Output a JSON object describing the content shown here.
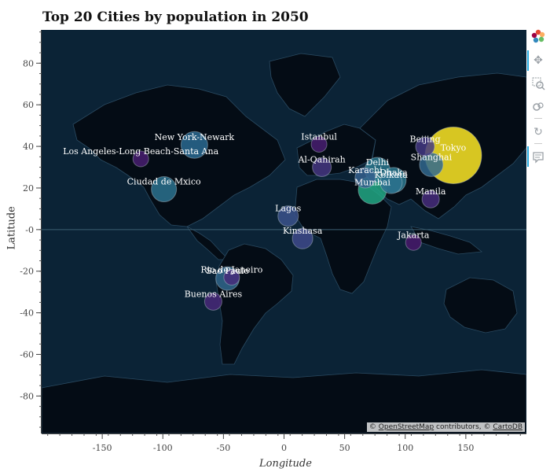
{
  "title": "Top 20 Cities by population in 2050",
  "xlabel": "Longitude",
  "ylabel": "Latitude",
  "attribution": {
    "prefix": "© ",
    "osm": "OpenStreetMap",
    "middle": " contributors, © ",
    "carto": "CartoDB"
  },
  "colors": {
    "ocean": "#0b2336",
    "land": "#040c15",
    "border": "#2a4a61",
    "label": "#ffffff"
  },
  "toolbar": [
    "bokeh-logo-icon",
    "pan-icon",
    "box-zoom-icon",
    "wheel-zoom-icon",
    "reset-icon",
    "hover-icon"
  ],
  "chart_data": {
    "type": "scatter",
    "title": "Top 20 Cities by population in 2050",
    "xlabel": "Longitude",
    "ylabel": "Latitude",
    "xlim": [
      -200,
      200
    ],
    "ylim": [
      -98,
      96
    ],
    "x_ticks": [
      -150,
      -100,
      -50,
      0,
      50,
      100,
      150
    ],
    "y_ticks": [
      80,
      60,
      40,
      20,
      0,
      -20,
      -40,
      -60,
      -80
    ],
    "y_tick_labels": [
      "80",
      "60",
      "40",
      "20",
      "-0",
      "-20",
      "-40",
      "-60",
      "-80"
    ],
    "grid": false,
    "cities": [
      {
        "name": "Tokyo",
        "lon": 139.7,
        "lat": 35.7,
        "size": 36,
        "color": "#fde725"
      },
      {
        "name": "Delhi",
        "lon": 77.1,
        "lat": 28.7,
        "size": 16,
        "color": "#2a788e"
      },
      {
        "name": "Shanghai",
        "lon": 121.5,
        "lat": 31.2,
        "size": 15,
        "color": "#31688e"
      },
      {
        "name": "Mumbai",
        "lon": 72.9,
        "lat": 19.1,
        "size": 18,
        "color": "#22a884"
      },
      {
        "name": "Dhaka",
        "lon": 90.4,
        "lat": 23.8,
        "size": 16,
        "color": "#2a788e"
      },
      {
        "name": "Karachi",
        "lon": 67.0,
        "lat": 24.9,
        "size": 13,
        "color": "#355f8d"
      },
      {
        "name": "Kolkata",
        "lon": 88.4,
        "lat": 22.6,
        "size": 14,
        "color": "#2c728e"
      },
      {
        "name": "Beijing",
        "lon": 116.4,
        "lat": 39.9,
        "size": 12,
        "color": "#443983"
      },
      {
        "name": "Manila",
        "lon": 121.0,
        "lat": 14.6,
        "size": 11,
        "color": "#472d7b"
      },
      {
        "name": "Jakarta",
        "lon": 106.8,
        "lat": -6.2,
        "size": 10,
        "color": "#48186a"
      },
      {
        "name": "Lagos",
        "lon": 3.4,
        "lat": 6.5,
        "size": 13,
        "color": "#3b528b"
      },
      {
        "name": "Kinshasa",
        "lon": 15.3,
        "lat": -4.3,
        "size": 13,
        "color": "#3e4989"
      },
      {
        "name": "Istanbul",
        "lon": 28.9,
        "lat": 41.0,
        "size": 10,
        "color": "#481f70"
      },
      {
        "name": "Al-Qahirah",
        "lon": 31.2,
        "lat": 30.0,
        "size": 12,
        "color": "#453781"
      },
      {
        "name": "New York-Newark",
        "lon": -74.0,
        "lat": 40.7,
        "size": 17,
        "color": "#2a6a90"
      },
      {
        "name": "Los Angeles-Long Beach-Santa Ana",
        "lon": -118.2,
        "lat": 34.0,
        "size": 10,
        "color": "#481f70"
      },
      {
        "name": "Ciudad de Mxico",
        "lon": -99.1,
        "lat": 19.4,
        "size": 16,
        "color": "#2c728e"
      },
      {
        "name": "Sao Paulo",
        "lon": -46.6,
        "lat": -23.5,
        "size": 15,
        "color": "#31688e"
      },
      {
        "name": "Rio de Janeiro",
        "lon": -43.2,
        "lat": -22.9,
        "size": 10,
        "color": "#472d7b"
      },
      {
        "name": "Buenos Aires",
        "lon": -58.4,
        "lat": -34.6,
        "size": 11,
        "color": "#482878"
      }
    ]
  }
}
